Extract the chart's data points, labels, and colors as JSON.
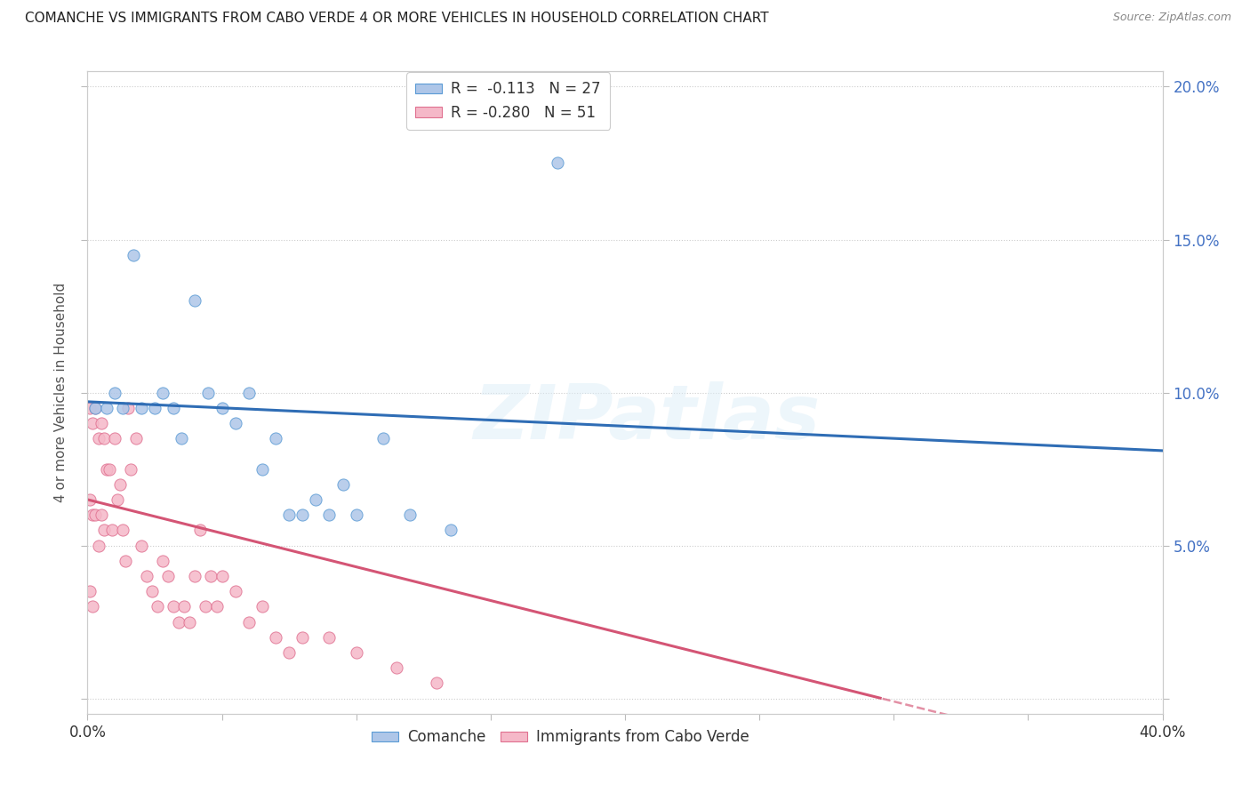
{
  "title": "COMANCHE VS IMMIGRANTS FROM CABO VERDE 4 OR MORE VEHICLES IN HOUSEHOLD CORRELATION CHART",
  "source": "Source: ZipAtlas.com",
  "ylabel": "4 or more Vehicles in Household",
  "x_min": 0.0,
  "x_max": 0.4,
  "y_min": -0.005,
  "y_max": 0.205,
  "y_ticks": [
    0.0,
    0.05,
    0.1,
    0.15,
    0.2
  ],
  "y_tick_labels_right": [
    "",
    "5.0%",
    "10.0%",
    "15.0%",
    "20.0%"
  ],
  "legend_r1": "R =  -0.113   N = 27",
  "legend_r2": "R = -0.280   N = 51",
  "comanche_color": "#aec6e8",
  "comanche_edge_color": "#5b9bd5",
  "comanche_line_color": "#2f6db5",
  "cabo_verde_color": "#f5b8c8",
  "cabo_verde_edge_color": "#e07090",
  "cabo_verde_line_color": "#d45575",
  "watermark_text": "ZIPatlas",
  "comanche_x": [
    0.003,
    0.007,
    0.01,
    0.013,
    0.017,
    0.02,
    0.025,
    0.028,
    0.032,
    0.035,
    0.04,
    0.045,
    0.05,
    0.055,
    0.06,
    0.065,
    0.07,
    0.075,
    0.08,
    0.085,
    0.09,
    0.095,
    0.1,
    0.11,
    0.12,
    0.135,
    0.175
  ],
  "comanche_y": [
    0.095,
    0.095,
    0.1,
    0.095,
    0.145,
    0.095,
    0.095,
    0.1,
    0.095,
    0.085,
    0.13,
    0.1,
    0.095,
    0.09,
    0.1,
    0.075,
    0.085,
    0.06,
    0.06,
    0.065,
    0.06,
    0.07,
    0.06,
    0.085,
    0.06,
    0.055,
    0.175
  ],
  "cabo_verde_x": [
    0.001,
    0.001,
    0.001,
    0.002,
    0.002,
    0.002,
    0.003,
    0.003,
    0.004,
    0.004,
    0.005,
    0.005,
    0.006,
    0.006,
    0.007,
    0.008,
    0.009,
    0.01,
    0.011,
    0.012,
    0.013,
    0.014,
    0.015,
    0.016,
    0.018,
    0.02,
    0.022,
    0.024,
    0.026,
    0.028,
    0.03,
    0.032,
    0.034,
    0.036,
    0.038,
    0.04,
    0.042,
    0.044,
    0.046,
    0.048,
    0.05,
    0.055,
    0.06,
    0.065,
    0.07,
    0.075,
    0.08,
    0.09,
    0.1,
    0.115,
    0.13
  ],
  "cabo_verde_y": [
    0.095,
    0.065,
    0.035,
    0.09,
    0.06,
    0.03,
    0.095,
    0.06,
    0.085,
    0.05,
    0.09,
    0.06,
    0.085,
    0.055,
    0.075,
    0.075,
    0.055,
    0.085,
    0.065,
    0.07,
    0.055,
    0.045,
    0.095,
    0.075,
    0.085,
    0.05,
    0.04,
    0.035,
    0.03,
    0.045,
    0.04,
    0.03,
    0.025,
    0.03,
    0.025,
    0.04,
    0.055,
    0.03,
    0.04,
    0.03,
    0.04,
    0.035,
    0.025,
    0.03,
    0.02,
    0.015,
    0.02,
    0.02,
    0.015,
    0.01,
    0.005
  ],
  "background_color": "#ffffff",
  "grid_color": "#cccccc"
}
